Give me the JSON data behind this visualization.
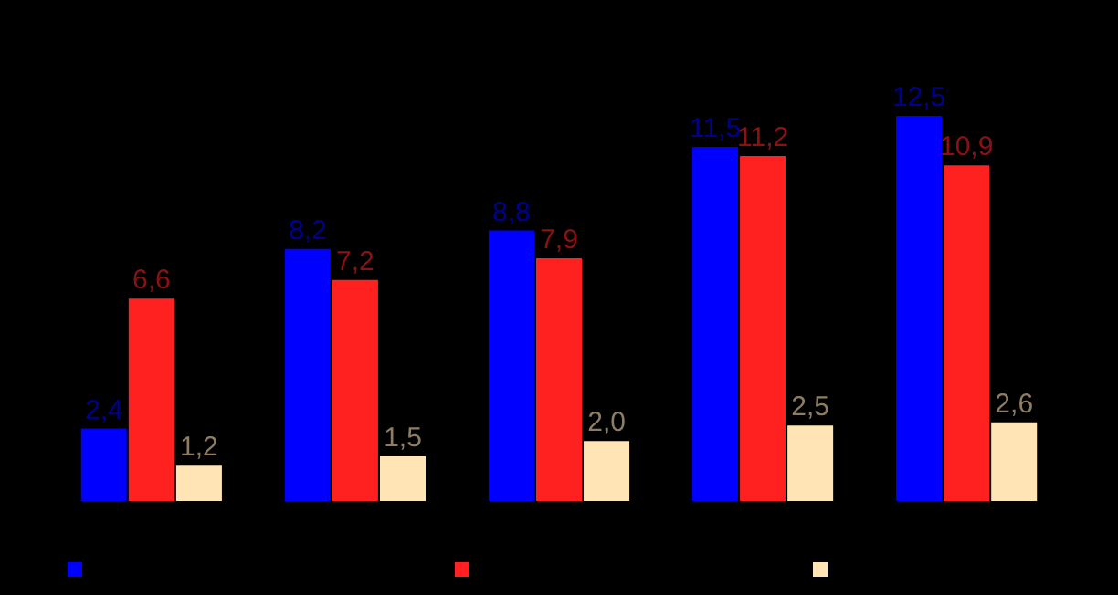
{
  "chart_data": {
    "type": "bar",
    "categories": [
      null,
      null,
      null,
      null,
      null
    ],
    "series": [
      {
        "color": "#0000ff",
        "values": [
          2.4,
          8.2,
          8.8,
          11.5,
          12.5
        ],
        "value_labels": [
          "2,4",
          "8,2",
          "8,8",
          "11,5",
          "12,5"
        ]
      },
      {
        "color": "#ff2020",
        "values": [
          6.6,
          7.2,
          7.9,
          11.2,
          10.9
        ],
        "value_labels": [
          "6,6",
          "7,2",
          "7,9",
          "11,2",
          "10,9"
        ]
      },
      {
        "color": "#ffe4b5",
        "values": [
          1.2,
          1.5,
          2.0,
          2.5,
          2.6
        ],
        "value_labels": [
          "1,2",
          "1,5",
          "2,0",
          "2,5",
          "2,6"
        ]
      }
    ],
    "tick_labels": false
  }
}
